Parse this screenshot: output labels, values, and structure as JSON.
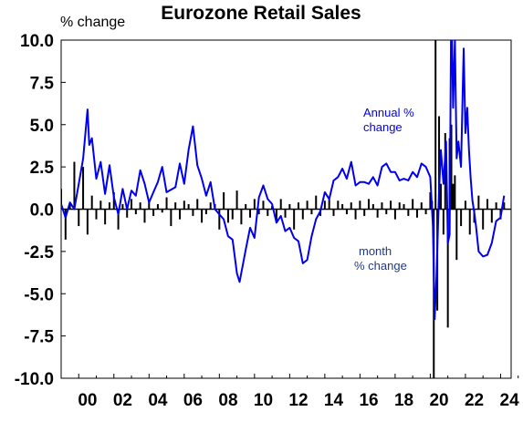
{
  "chart_data": {
    "type": "line",
    "title": "Eurozone Retail Sales",
    "ylabel": "% change",
    "ylim": [
      -10,
      10
    ],
    "yticks": [
      "10.0",
      "7.5",
      "5.0",
      "2.5",
      "0.0",
      "-2.5",
      "-5.0",
      "-7.5",
      "-10.0"
    ],
    "xlim": [
      1999.0,
      2024.6
    ],
    "xticks": [
      "00",
      "02",
      "04",
      "06",
      "08",
      "10",
      "12",
      "14",
      "16",
      "18",
      "20",
      "22",
      "24"
    ],
    "grid": false,
    "annotations": [
      {
        "lines": [
          "Annual %",
          "change"
        ],
        "color": "#0000ee"
      },
      {
        "lines": [
          "month",
          "% change"
        ],
        "color": "#1f3a8a"
      }
    ],
    "series": [
      {
        "name": "Annual % change",
        "color": "#0000ee",
        "x": [
          1999.0,
          1999.25,
          1999.5,
          1999.75,
          2000.0,
          2000.25,
          2000.5,
          2000.6,
          2000.75,
          2001.0,
          2001.25,
          2001.5,
          2001.75,
          2002.0,
          2002.25,
          2002.5,
          2002.75,
          2003.0,
          2003.25,
          2003.5,
          2003.75,
          2004.0,
          2004.25,
          2004.5,
          2004.75,
          2005.0,
          2005.5,
          2005.75,
          2006.0,
          2006.25,
          2006.5,
          2006.75,
          2007.0,
          2007.25,
          2007.5,
          2007.75,
          2008.0,
          2008.25,
          2008.5,
          2008.75,
          2009.0,
          2009.15,
          2009.5,
          2009.75,
          2010.0,
          2010.25,
          2010.5,
          2010.75,
          2011.0,
          2011.25,
          2011.5,
          2011.75,
          2012.0,
          2012.25,
          2012.5,
          2012.75,
          2013.0,
          2013.25,
          2013.5,
          2013.75,
          2014.0,
          2014.25,
          2014.5,
          2014.75,
          2015.0,
          2015.25,
          2015.5,
          2015.75,
          2016.0,
          2016.25,
          2016.5,
          2016.75,
          2017.0,
          2017.25,
          2017.5,
          2017.75,
          2018.0,
          2018.25,
          2018.5,
          2018.75,
          2019.0,
          2019.25,
          2019.5,
          2019.75,
          2020.0,
          2020.15,
          2020.25,
          2020.35,
          2020.5,
          2020.6,
          2020.75,
          2020.9,
          2021.0,
          2021.1,
          2021.2,
          2021.3,
          2021.4,
          2021.5,
          2021.6,
          2021.75,
          2021.9,
          2022.0,
          2022.1,
          2022.2,
          2022.3,
          2022.4,
          2022.5,
          2022.6,
          2022.75,
          2023.0,
          2023.25,
          2023.5,
          2023.75,
          2024.0,
          2024.2
        ],
        "y": [
          0.3,
          -0.5,
          0.4,
          0.0,
          1.5,
          3.0,
          5.9,
          3.8,
          4.2,
          1.8,
          2.8,
          0.9,
          2.6,
          0.7,
          -0.3,
          1.2,
          0.0,
          1.1,
          0.8,
          2.3,
          1.5,
          0.4,
          1.0,
          1.6,
          2.5,
          1.0,
          1.3,
          2.7,
          1.5,
          3.5,
          4.9,
          2.6,
          1.8,
          0.8,
          1.6,
          0.0,
          -0.3,
          -0.6,
          -1.6,
          -1.8,
          -3.8,
          -4.3,
          -2.4,
          -1.1,
          -1.7,
          0.7,
          1.4,
          0.6,
          0.3,
          -0.8,
          -0.4,
          -1.3,
          -1.1,
          -1.7,
          -1.9,
          -3.2,
          -3.0,
          -1.6,
          -0.6,
          -0.1,
          1.0,
          0.6,
          1.7,
          1.9,
          2.4,
          1.8,
          2.8,
          1.4,
          1.6,
          1.6,
          1.5,
          1.9,
          1.4,
          2.5,
          2.7,
          2.2,
          2.2,
          1.7,
          1.8,
          1.7,
          2.2,
          1.9,
          2.7,
          2.5,
          1.9,
          -1.0,
          -6.5,
          -4.0,
          1.0,
          3.5,
          1.5,
          4.0,
          -2.0,
          -1.5,
          13.0,
          6.0,
          10.0,
          3.0,
          4.0,
          2.5,
          9.5,
          4.5,
          6.0,
          3.5,
          1.8,
          0.5,
          -0.2,
          -1.0,
          -2.5,
          -2.8,
          -2.7,
          -2.0,
          -0.7,
          -0.5,
          0.8
        ]
      },
      {
        "name": "month % change",
        "color": "#000000",
        "x": [
          1999.0,
          1999.25,
          1999.5,
          1999.75,
          2000.0,
          2000.25,
          2000.5,
          2000.75,
          2001.0,
          2001.25,
          2001.5,
          2001.75,
          2002.0,
          2002.25,
          2002.5,
          2002.75,
          2003.0,
          2003.25,
          2003.5,
          2003.75,
          2004.0,
          2004.25,
          2004.5,
          2004.75,
          2005.0,
          2005.25,
          2005.5,
          2005.75,
          2006.0,
          2006.25,
          2006.5,
          2006.75,
          2007.0,
          2007.25,
          2007.5,
          2007.75,
          2008.0,
          2008.25,
          2008.5,
          2008.75,
          2009.0,
          2009.25,
          2009.5,
          2009.75,
          2010.0,
          2010.25,
          2010.5,
          2010.75,
          2011.0,
          2011.25,
          2011.5,
          2011.75,
          2012.0,
          2012.25,
          2012.5,
          2012.75,
          2013.0,
          2013.25,
          2013.5,
          2013.75,
          2014.0,
          2014.25,
          2014.5,
          2014.75,
          2015.0,
          2015.25,
          2015.5,
          2015.75,
          2016.0,
          2016.25,
          2016.5,
          2016.75,
          2017.0,
          2017.25,
          2017.5,
          2017.75,
          2018.0,
          2018.25,
          2018.5,
          2018.75,
          2019.0,
          2019.25,
          2019.5,
          2019.75,
          2020.0,
          2020.1,
          2020.2,
          2020.3,
          2020.4,
          2020.5,
          2020.6,
          2020.75,
          2020.85,
          2021.0,
          2021.1,
          2021.2,
          2021.3,
          2021.4,
          2021.5,
          2021.75,
          2022.0,
          2022.25,
          2022.5,
          2022.75,
          2023.0,
          2023.25,
          2023.5,
          2023.75,
          2024.0,
          2024.2
        ],
        "y": [
          1.2,
          -1.8,
          0.3,
          2.8,
          -1.0,
          2.5,
          -1.5,
          0.8,
          -0.6,
          0.5,
          -0.9,
          0.4,
          1.0,
          -1.2,
          0.3,
          -0.5,
          0.6,
          -0.3,
          0.4,
          -0.8,
          0.5,
          -0.4,
          0.3,
          -0.2,
          0.7,
          -1.0,
          0.4,
          -0.6,
          0.5,
          0.3,
          -0.4,
          0.6,
          -0.8,
          -0.3,
          0.4,
          0.3,
          -1.2,
          1.0,
          -0.8,
          -0.6,
          1.1,
          -0.9,
          0.3,
          -0.5,
          0.6,
          -0.3,
          0.5,
          -0.4,
          0.2,
          -0.8,
          0.6,
          -0.5,
          0.3,
          -1.2,
          0.4,
          -0.6,
          0.5,
          -0.3,
          0.8,
          -0.4,
          0.5,
          0.6,
          -0.4,
          0.5,
          0.3,
          -0.3,
          0.4,
          -0.6,
          0.5,
          -0.4,
          0.6,
          0.3,
          -0.5,
          0.4,
          -0.3,
          0.5,
          -0.6,
          0.4,
          0.3,
          -0.4,
          0.6,
          -0.5,
          0.4,
          -0.3,
          1.0,
          0.5,
          -10.0,
          10.0,
          -6.0,
          5.5,
          1.5,
          -1.5,
          4.5,
          -7.0,
          4.2,
          5.0,
          1.5,
          2.0,
          -3.0,
          -1.0,
          0.5,
          -1.5,
          -0.8,
          0.8,
          -1.2,
          0.6,
          -0.8,
          0.4,
          -0.6,
          0.4
        ]
      }
    ]
  }
}
